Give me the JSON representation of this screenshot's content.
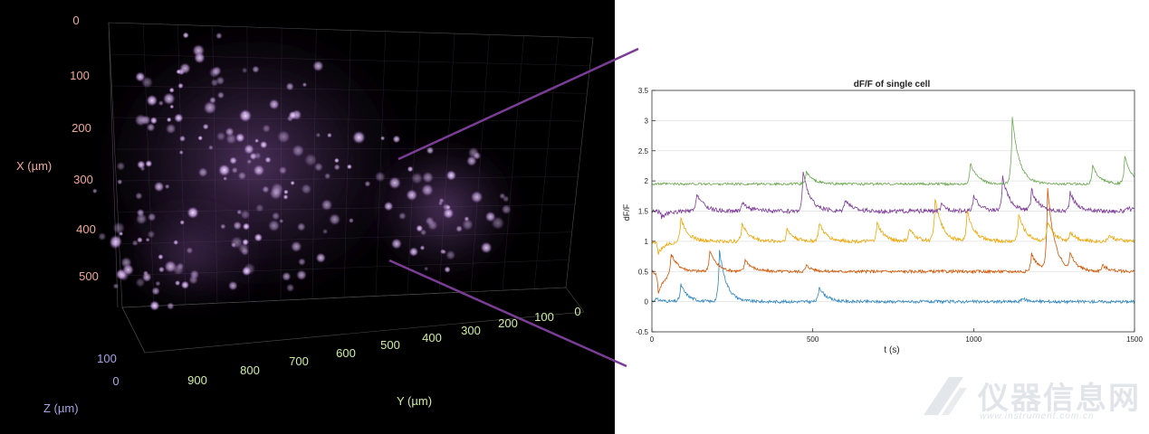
{
  "volume": {
    "x_label": "X (µm)",
    "y_label": "Y (µm)",
    "z_label": "Z (µm)",
    "x_ticks": [
      "0",
      "100",
      "200",
      "300",
      "400",
      "500"
    ],
    "y_ticks": [
      "900",
      "800",
      "700",
      "600",
      "500",
      "400",
      "300",
      "200",
      "100",
      "0"
    ],
    "z_ticks": [
      "100",
      "0"
    ],
    "colors": {
      "x_axis": "#f0a898",
      "y_axis": "#cfeea0",
      "z_axis": "#a9a2e8",
      "cells": "#b98ad6",
      "connector": "#7a3c95"
    }
  },
  "chart_data": {
    "type": "line",
    "title": "dF/F of single cell",
    "xlabel": "t (s)",
    "ylabel": "dF/F",
    "xlim": [
      0,
      1500
    ],
    "ylim": [
      -0.5,
      3.5
    ],
    "xticks": [
      0,
      500,
      1000,
      1500
    ],
    "yticks": [
      -0.5,
      0,
      0.5,
      1,
      1.5,
      2,
      2.5,
      3,
      3.5
    ],
    "grid": "horizontal",
    "series": [
      {
        "color": "#2e86c1",
        "baseline": 0.0,
        "noise": 0.025,
        "peaks": [
          [
            10,
            0.05
          ],
          [
            90,
            0.28
          ],
          [
            210,
            0.85
          ],
          [
            520,
            0.25
          ],
          [
            1150,
            0.05
          ]
        ]
      },
      {
        "color": "#d35400",
        "baseline": 0.5,
        "noise": 0.025,
        "peaks": [
          [
            20,
            -0.35
          ],
          [
            60,
            0.35
          ],
          [
            180,
            0.35
          ],
          [
            290,
            0.2
          ],
          [
            480,
            0.1
          ],
          [
            1180,
            0.3
          ],
          [
            1230,
            1.35
          ],
          [
            1300,
            0.25
          ],
          [
            1400,
            0.1
          ]
        ]
      },
      {
        "color": "#f0a500",
        "baseline": 1.0,
        "noise": 0.03,
        "peaks": [
          [
            20,
            -0.2
          ],
          [
            90,
            0.4
          ],
          [
            280,
            0.3
          ],
          [
            420,
            0.2
          ],
          [
            520,
            0.3
          ],
          [
            700,
            0.3
          ],
          [
            800,
            0.2
          ],
          [
            880,
            0.7
          ],
          [
            980,
            0.5
          ],
          [
            1140,
            0.45
          ],
          [
            1230,
            0.3
          ],
          [
            1300,
            0.15
          ],
          [
            1420,
            0.1
          ]
        ]
      },
      {
        "color": "#7d3c98",
        "baseline": 1.5,
        "noise": 0.035,
        "peaks": [
          [
            30,
            -0.1
          ],
          [
            140,
            0.3
          ],
          [
            280,
            0.15
          ],
          [
            470,
            0.65
          ],
          [
            600,
            0.2
          ],
          [
            900,
            0.1
          ],
          [
            1000,
            0.25
          ],
          [
            1090,
            0.55
          ],
          [
            1180,
            0.35
          ],
          [
            1300,
            0.3
          ],
          [
            1480,
            0.05
          ]
        ]
      },
      {
        "color": "#6aa84f",
        "baseline": 1.95,
        "noise": 0.02,
        "peaks": [
          [
            480,
            0.2
          ],
          [
            990,
            0.35
          ],
          [
            1120,
            1.1
          ],
          [
            1370,
            0.3
          ],
          [
            1470,
            0.45
          ]
        ]
      }
    ]
  },
  "watermark": {
    "text": "仪器信息网",
    "sub": "www.instrument.com.cn"
  }
}
